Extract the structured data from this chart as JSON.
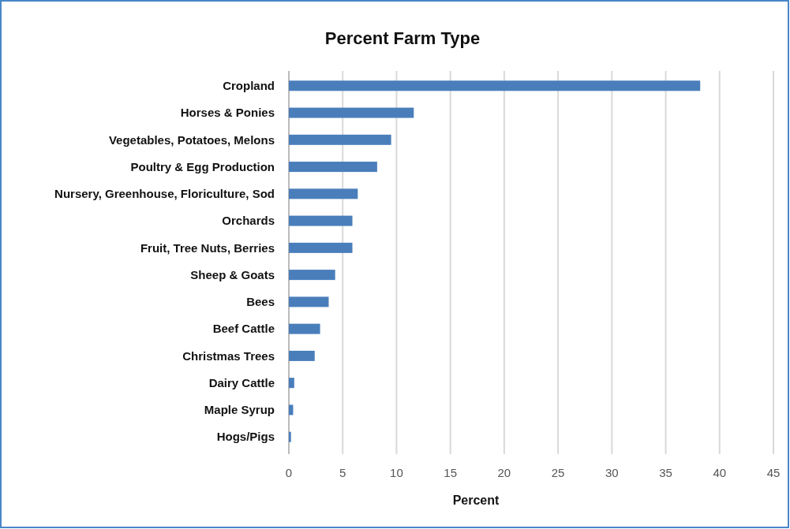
{
  "chart_data": {
    "type": "bar",
    "orientation": "horizontal",
    "title": "Percent Farm Type",
    "xlabel": "Percent",
    "categories": [
      "Cropland",
      "Horses & Ponies",
      "Vegetables, Potatoes, Melons",
      "Poultry & Egg Production",
      "Nursery, Greenhouse, Floriculture, Sod",
      "Orchards",
      "Fruit, Tree Nuts, Berries",
      "Sheep & Goats",
      "Bees",
      "Beef Cattle",
      "Christmas Trees",
      "Dairy Cattle",
      "Maple Syrup",
      "Hogs/Pigs"
    ],
    "values": [
      38.2,
      11.6,
      9.5,
      8.2,
      6.4,
      5.9,
      5.9,
      4.3,
      3.7,
      2.9,
      2.4,
      0.5,
      0.4,
      0.2
    ],
    "color": "#4a7ebb",
    "xlim": [
      0,
      45
    ],
    "xticks": [
      0,
      5,
      10,
      15,
      20,
      25,
      30,
      35,
      40,
      45
    ],
    "grid": "x"
  }
}
